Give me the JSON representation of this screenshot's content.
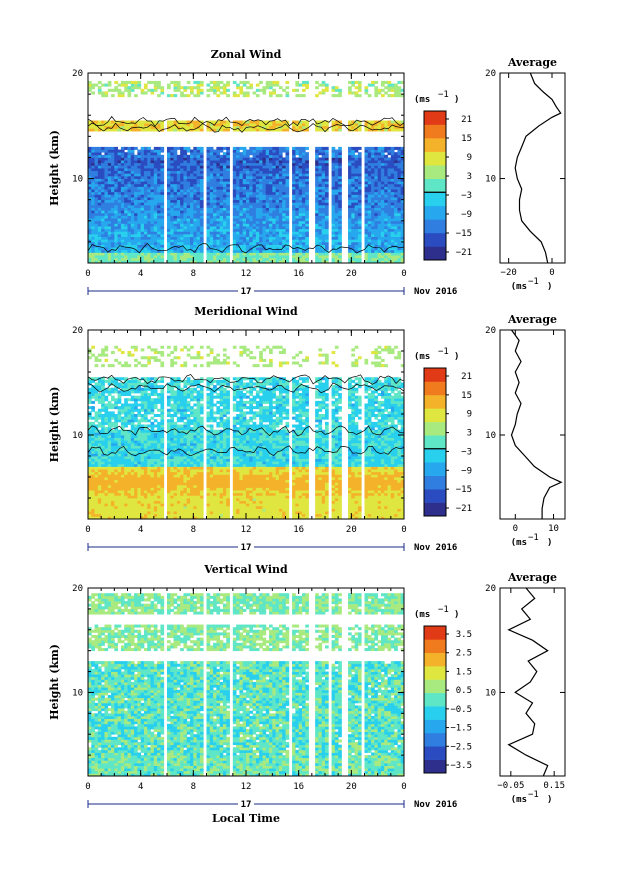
{
  "chart_data": [
    {
      "type": "heatmap",
      "title": "Zonal Wind",
      "ylabel": "Height (km)",
      "y_ticks": [
        "20",
        "10"
      ],
      "x_ticks": [
        "0",
        "4",
        "8",
        "12",
        "16",
        "20",
        "0"
      ],
      "xlim": [
        0,
        24
      ],
      "ylim": [
        2,
        20
      ],
      "day_label": "17",
      "date_label": "Nov 2016",
      "colorbar": {
        "unit_base": "(ms",
        "unit_exp": "−1",
        "ticks": [
          "21",
          "15",
          "9",
          "3",
          "−3",
          "−9",
          "−15",
          "−21"
        ],
        "range": [
          -24,
          24
        ],
        "colors": [
          "#2e2f8c",
          "#2a4cc0",
          "#2f7ee0",
          "#27a8ee",
          "#28d0ee",
          "#5fe6c6",
          "#a8ea80",
          "#e0e640",
          "#f4b22a",
          "#f07a1e",
          "#e03a16"
        ]
      },
      "clusters": {
        "low_level": [
          3,
          1.5
        ],
        "mid_level": [
          9,
          -8
        ],
        "upper_level": [
          12,
          -14
        ],
        "jet_level": [
          15,
          10
        ],
        "top_level": [
          18.5,
          2
        ]
      },
      "average_profile": {
        "title": "Average",
        "x_ticks": [
          "−20",
          "0"
        ],
        "xlim": [
          -24,
          6
        ],
        "xlabel_base": "(ms",
        "xlabel_exp": "−1",
        "points": [
          [
            -2,
            2
          ],
          [
            -3,
            3
          ],
          [
            -5,
            4
          ],
          [
            -10,
            5
          ],
          [
            -14,
            6
          ],
          [
            -15,
            7
          ],
          [
            -15,
            8
          ],
          [
            -14,
            9
          ],
          [
            -16,
            10
          ],
          [
            -17,
            11
          ],
          [
            -16,
            12
          ],
          [
            -14,
            13
          ],
          [
            -12,
            14
          ],
          [
            -6,
            15
          ],
          [
            0,
            15.8
          ],
          [
            4,
            16.2
          ],
          [
            2,
            16.8
          ],
          [
            0,
            17.5
          ],
          [
            -4,
            18.2
          ],
          [
            -8,
            19
          ],
          [
            -10,
            20
          ]
        ]
      }
    },
    {
      "type": "heatmap",
      "title": "Meridional Wind",
      "ylabel": "Height (km)",
      "y_ticks": [
        "20",
        "10"
      ],
      "x_ticks": [
        "0",
        "4",
        "8",
        "12",
        "16",
        "20",
        "0"
      ],
      "xlim": [
        0,
        24
      ],
      "ylim": [
        2,
        20
      ],
      "day_label": "17",
      "date_label": "Nov 2016",
      "colorbar": {
        "unit_base": "(ms",
        "unit_exp": "−1",
        "ticks": [
          "21",
          "15",
          "9",
          "3",
          "−3",
          "−9",
          "−15",
          "−21"
        ],
        "range": [
          -24,
          24
        ],
        "colors": [
          "#2e2f8c",
          "#2a4cc0",
          "#2f7ee0",
          "#27a8ee",
          "#28d0ee",
          "#5fe6c6",
          "#a8ea80",
          "#e0e640",
          "#f4b22a",
          "#f07a1e",
          "#e03a16"
        ]
      },
      "clusters": {
        "low_level": [
          4,
          9
        ],
        "peak_level": [
          5.5,
          13
        ],
        "mid_level": [
          9,
          -3
        ],
        "upper_level": [
          13,
          -4
        ],
        "top_level": [
          17.5,
          2
        ]
      },
      "average_profile": {
        "title": "Average",
        "x_ticks": [
          "0",
          "10"
        ],
        "xlim": [
          -4,
          13
        ],
        "xlabel_base": "(ms",
        "xlabel_exp": "−1",
        "points": [
          [
            7,
            2
          ],
          [
            7,
            3
          ],
          [
            7.5,
            4
          ],
          [
            9,
            5
          ],
          [
            12,
            5.5
          ],
          [
            9,
            6
          ],
          [
            5,
            7
          ],
          [
            2.5,
            8
          ],
          [
            0,
            9
          ],
          [
            -1,
            10
          ],
          [
            0,
            11
          ],
          [
            0.5,
            12
          ],
          [
            1.5,
            13
          ],
          [
            0,
            14
          ],
          [
            1,
            15
          ],
          [
            0,
            16
          ],
          [
            1.5,
            17
          ],
          [
            0,
            18
          ],
          [
            1,
            19
          ],
          [
            -1,
            20
          ]
        ]
      }
    },
    {
      "type": "heatmap",
      "title": "Vertical Wind",
      "ylabel": "Height (km)",
      "xlabel": "Local Time",
      "y_ticks": [
        "20",
        "10"
      ],
      "x_ticks": [
        "0",
        "4",
        "8",
        "12",
        "16",
        "20",
        "0"
      ],
      "xlim": [
        0,
        24
      ],
      "ylim": [
        2,
        20
      ],
      "day_label": "17",
      "date_label": "Nov 2016",
      "colorbar": {
        "unit_base": "(ms",
        "unit_exp": "−1",
        "ticks": [
          "3.5",
          "2.5",
          "1.5",
          "0.5",
          "−0.5",
          "−1.5",
          "−2.5",
          "−3.5"
        ],
        "range": [
          -4,
          4
        ],
        "colors": [
          "#2e2f8c",
          "#2a4cc0",
          "#2f7ee0",
          "#27a8ee",
          "#28d0ee",
          "#5fe6c6",
          "#a8ea80",
          "#e0e640",
          "#f4b22a",
          "#f07a1e",
          "#e03a16"
        ]
      },
      "clusters": {
        "low_level": [
          4,
          0.1
        ],
        "mid_level": [
          10,
          -0.1
        ],
        "upper_level": [
          15,
          0.2
        ]
      },
      "average_profile": {
        "title": "Average",
        "x_ticks": [
          "−0.05",
          "0.15"
        ],
        "xlim": [
          -0.1,
          0.2
        ],
        "xlabel_base": "(ms",
        "xlabel_exp": "−1",
        "points": [
          [
            0.1,
            2
          ],
          [
            0.12,
            3
          ],
          [
            0.02,
            4
          ],
          [
            -0.06,
            5
          ],
          [
            0.05,
            6
          ],
          [
            0.06,
            7
          ],
          [
            0.02,
            8
          ],
          [
            0.05,
            9
          ],
          [
            -0.03,
            10
          ],
          [
            0.04,
            11
          ],
          [
            0.07,
            12
          ],
          [
            0.03,
            13
          ],
          [
            0.12,
            14
          ],
          [
            0.05,
            15
          ],
          [
            -0.06,
            16
          ],
          [
            0.04,
            17
          ],
          [
            0.0,
            18
          ],
          [
            0.06,
            19
          ],
          [
            0.02,
            20
          ]
        ]
      }
    }
  ]
}
